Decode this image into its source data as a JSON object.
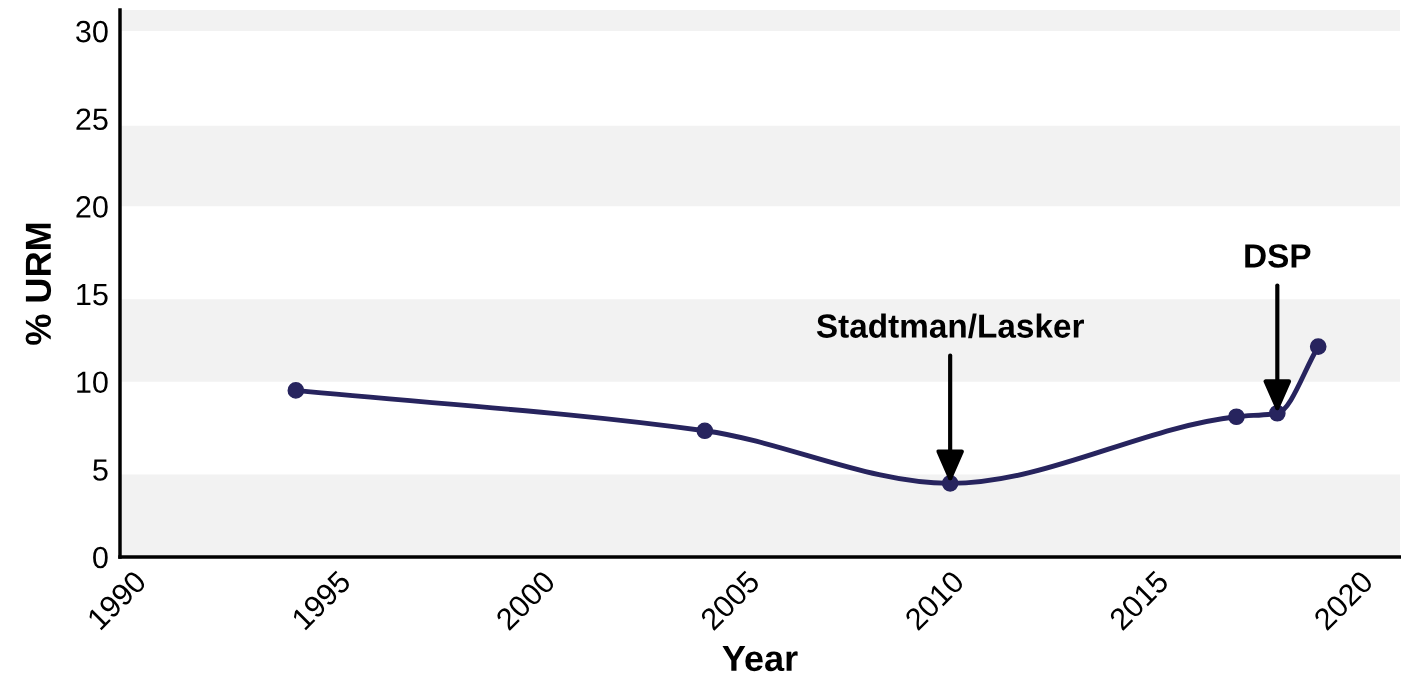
{
  "chart_data": {
    "type": "line",
    "xlabel": "Year",
    "ylabel": "% URM",
    "x": [
      1994,
      2004,
      2010,
      2017,
      2018,
      2019
    ],
    "series": [
      {
        "color": "#27245e",
        "values": [
          9.5,
          7.2,
          4.2,
          8.0,
          8.2,
          12.0
        ]
      }
    ],
    "xlim": [
      1989.7,
      2021
    ],
    "xticks": [
      1990,
      1995,
      2000,
      2005,
      2010,
      2015,
      2020
    ],
    "ylim": [
      0,
      31.2
    ],
    "yticks": [
      0,
      5,
      10,
      15,
      20,
      25,
      30
    ],
    "marker": "circle",
    "line_style": "solid",
    "grid": false,
    "legend": false,
    "bands": [
      {
        "axis": "y",
        "from": 0,
        "to": 4.7,
        "color": "#f2f2f2"
      },
      {
        "axis": "y",
        "from": 10,
        "to": 14.7,
        "color": "#f2f2f2"
      },
      {
        "axis": "y",
        "from": 20,
        "to": 24.6,
        "color": "#f2f2f2"
      },
      {
        "axis": "y",
        "from": 30,
        "to": 31.2,
        "color": "#f2f2f2"
      }
    ],
    "annotations": [
      {
        "text": "Stadtman/Lasker",
        "x": 2010,
        "y": 4.2
      },
      {
        "text": "DSP",
        "x": 2018,
        "y": 8.2
      }
    ]
  }
}
